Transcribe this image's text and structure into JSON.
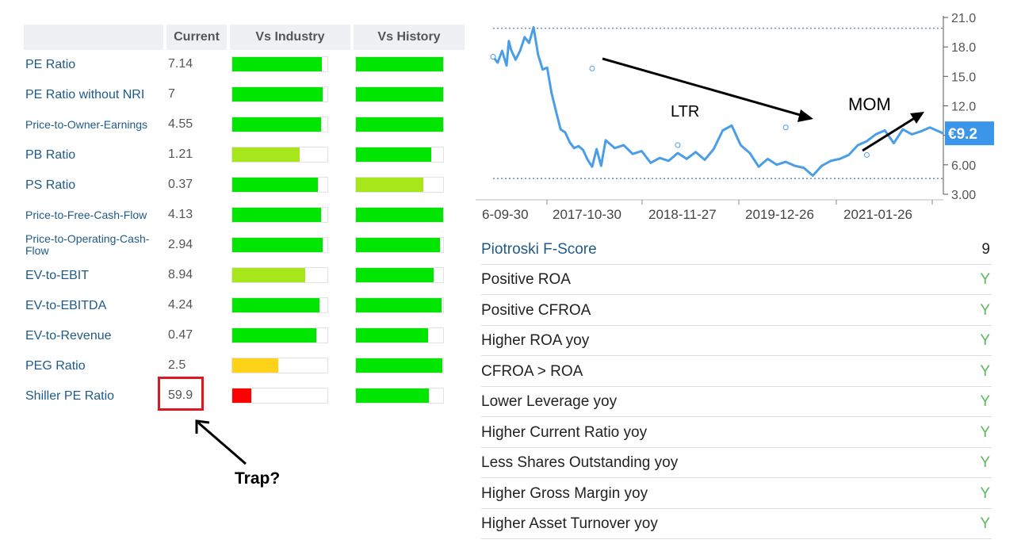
{
  "table": {
    "headers": {
      "current": "Current",
      "vs_industry": "Vs Industry",
      "vs_history": "Vs History"
    },
    "rows": [
      {
        "label": "PE Ratio",
        "current": "7.14",
        "industry_pct": 0.94,
        "history_pct": 1.0,
        "industry_color": "#00e600",
        "history_color": "#00e600"
      },
      {
        "label": "PE Ratio without NRI",
        "current": "7",
        "industry_pct": 0.95,
        "history_pct": 1.0,
        "industry_color": "#00e600",
        "history_color": "#00e600"
      },
      {
        "label": "Price-to-Owner-Earnings",
        "current": "4.55",
        "industry_pct": 0.93,
        "history_pct": 1.0,
        "industry_color": "#00e600",
        "history_color": "#00e600"
      },
      {
        "label": "PB Ratio",
        "current": "1.21",
        "industry_pct": 0.71,
        "history_pct": 0.86,
        "industry_color": "#a6e61a",
        "history_color": "#00e600"
      },
      {
        "label": "PS Ratio",
        "current": "0.37",
        "industry_pct": 0.9,
        "history_pct": 0.77,
        "industry_color": "#00e600",
        "history_color": "#a6e61a"
      },
      {
        "label": "Price-to-Free-Cash-Flow",
        "current": "4.13",
        "industry_pct": 0.93,
        "history_pct": 1.0,
        "industry_color": "#00e600",
        "history_color": "#00e600"
      },
      {
        "label": "Price-to-Operating-Cash-Flow",
        "current": "2.94",
        "industry_pct": 0.95,
        "history_pct": 0.96,
        "industry_color": "#00e600",
        "history_color": "#00e600"
      },
      {
        "label": "EV-to-EBIT",
        "current": "8.94",
        "industry_pct": 0.77,
        "history_pct": 0.89,
        "industry_color": "#a6e61a",
        "history_color": "#00e600"
      },
      {
        "label": "EV-to-EBITDA",
        "current": "4.24",
        "industry_pct": 0.92,
        "history_pct": 0.98,
        "industry_color": "#00e600",
        "history_color": "#00e600"
      },
      {
        "label": "EV-to-Revenue",
        "current": "0.47",
        "industry_pct": 0.88,
        "history_pct": 0.83,
        "industry_color": "#00e600",
        "history_color": "#00e600"
      },
      {
        "label": "PEG Ratio",
        "current": "2.5",
        "industry_pct": 0.48,
        "history_pct": 0.99,
        "industry_color": "#ffd21a",
        "history_color": "#00e600"
      },
      {
        "label": "Shiller PE Ratio",
        "current": "59.9",
        "industry_pct": 0.2,
        "history_pct": 0.84,
        "industry_color": "#ff0000",
        "history_color": "#00e600"
      }
    ]
  },
  "annotations": {
    "trap": "Trap?",
    "ltr": "LTR",
    "mom": "MOM"
  },
  "chart_data": {
    "type": "line",
    "x_ticks": [
      "6-09-30",
      "2017-10-30",
      "2018-11-27",
      "2019-12-26",
      "2021-01-26"
    ],
    "y_ticks": [
      "21.0",
      "18.0",
      "15.0",
      "12.0",
      "",
      "6.00",
      "3.00"
    ],
    "ylim": [
      3.0,
      21.0
    ],
    "current_price_label": "€9.2",
    "current_price": 9.2,
    "reference_lines": [
      19.9,
      4.6
    ],
    "series": [
      {
        "color": "#4a9ee8",
        "x": [
          0,
          0.01,
          0.02,
          0.03,
          0.035,
          0.04,
          0.05,
          0.06,
          0.07,
          0.08,
          0.09,
          0.1,
          0.11,
          0.12,
          0.13,
          0.14,
          0.15,
          0.16,
          0.17,
          0.18,
          0.19,
          0.2,
          0.21,
          0.22,
          0.23,
          0.24,
          0.25,
          0.27,
          0.29,
          0.31,
          0.33,
          0.35,
          0.37,
          0.39,
          0.41,
          0.43,
          0.45,
          0.47,
          0.49,
          0.51,
          0.53,
          0.55,
          0.57,
          0.59,
          0.61,
          0.63,
          0.65,
          0.67,
          0.69,
          0.71,
          0.73,
          0.75,
          0.77,
          0.79,
          0.81,
          0.83,
          0.85,
          0.87,
          0.89,
          0.91,
          0.93,
          0.95,
          0.97,
          0.99,
          1.0
        ],
        "y": [
          17.0,
          16.4,
          17.6,
          16.1,
          18.6,
          17.7,
          16.7,
          17.6,
          19.0,
          18.4,
          20.0,
          17.2,
          15.7,
          15.9,
          13.3,
          11.4,
          9.6,
          9.3,
          8.3,
          7.7,
          7.9,
          7.5,
          6.5,
          5.8,
          7.6,
          5.9,
          8.5,
          7.7,
          8.0,
          7.1,
          7.4,
          6.2,
          6.7,
          6.4,
          7.2,
          6.6,
          7.3,
          6.5,
          7.6,
          9.5,
          10.0,
          8.0,
          7.2,
          5.8,
          6.6,
          6.0,
          6.3,
          5.9,
          5.7,
          4.9,
          5.9,
          6.4,
          6.6,
          7.0,
          8.0,
          8.4,
          9.1,
          9.5,
          8.2,
          9.6,
          9.1,
          9.4,
          9.8,
          9.4,
          9.2
        ]
      }
    ]
  },
  "fscore": {
    "title": "Piotroski F-Score",
    "score": "9",
    "items": [
      {
        "label": "Positive ROA",
        "value": "Y"
      },
      {
        "label": "Positive CFROA",
        "value": "Y"
      },
      {
        "label": "Higher ROA yoy",
        "value": "Y"
      },
      {
        "label": "CFROA > ROA",
        "value": "Y"
      },
      {
        "label": "Lower Leverage yoy",
        "value": "Y"
      },
      {
        "label": "Higher Current Ratio yoy",
        "value": "Y"
      },
      {
        "label": "Less Shares Outstanding yoy",
        "value": "Y"
      },
      {
        "label": "Higher Gross Margin yoy",
        "value": "Y"
      },
      {
        "label": "Higher Asset Turnover yoy",
        "value": "Y"
      }
    ]
  }
}
